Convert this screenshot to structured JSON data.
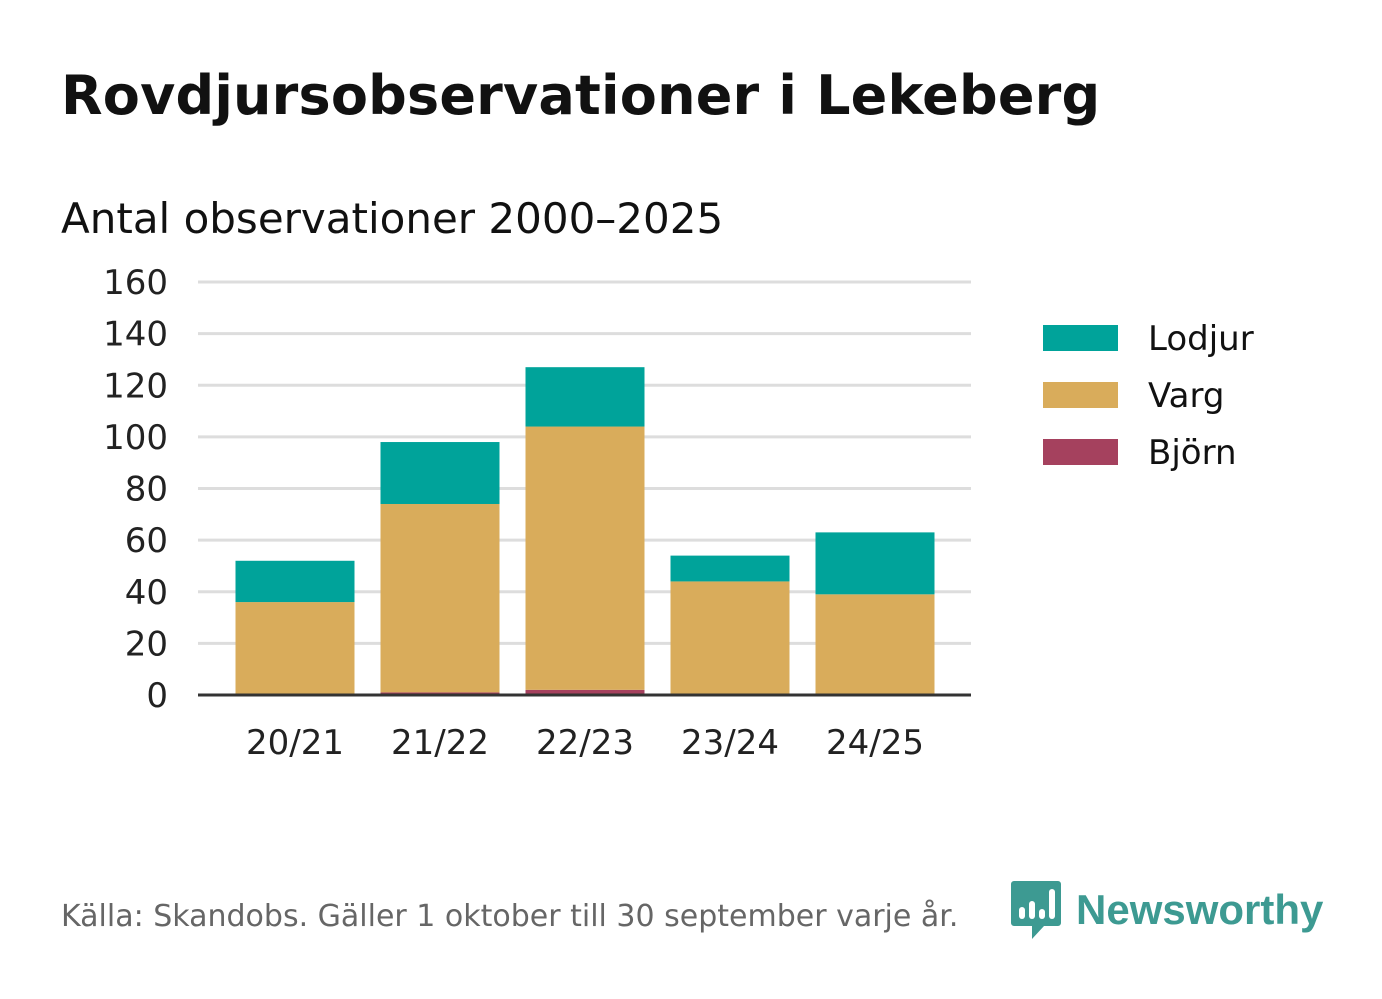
{
  "header": {
    "title": "Rovdjursobservationer i Lekeberg",
    "subtitle": "Antal observationer 2000–2025"
  },
  "footer": {
    "source": "Källa: Skandobs. Gäller 1 oktober till 30 september varje år.",
    "brand": "Newsworthy",
    "brand_icon": "bar-chart-speech-bubble-icon",
    "brand_color": "#3d9a92"
  },
  "chart_data": {
    "type": "bar",
    "stacked": true,
    "title": "Antal observationer 2000–2025",
    "xlabel": "",
    "ylabel": "",
    "categories": [
      "20/21",
      "21/22",
      "22/23",
      "23/24",
      "24/25"
    ],
    "ylim": [
      0,
      160
    ],
    "yticks": [
      0,
      20,
      40,
      60,
      80,
      100,
      120,
      140,
      160
    ],
    "grid": true,
    "legend_position": "right",
    "series": [
      {
        "name": "Björn",
        "color": "#a5415e",
        "values": [
          0,
          1,
          2,
          0,
          0
        ]
      },
      {
        "name": "Varg",
        "color": "#d9ac5b",
        "values": [
          36,
          73,
          102,
          44,
          39
        ]
      },
      {
        "name": "Lodjur",
        "color": "#00a39a",
        "values": [
          16,
          24,
          23,
          10,
          24
        ]
      }
    ],
    "legend_order": [
      "Lodjur",
      "Varg",
      "Björn"
    ]
  }
}
